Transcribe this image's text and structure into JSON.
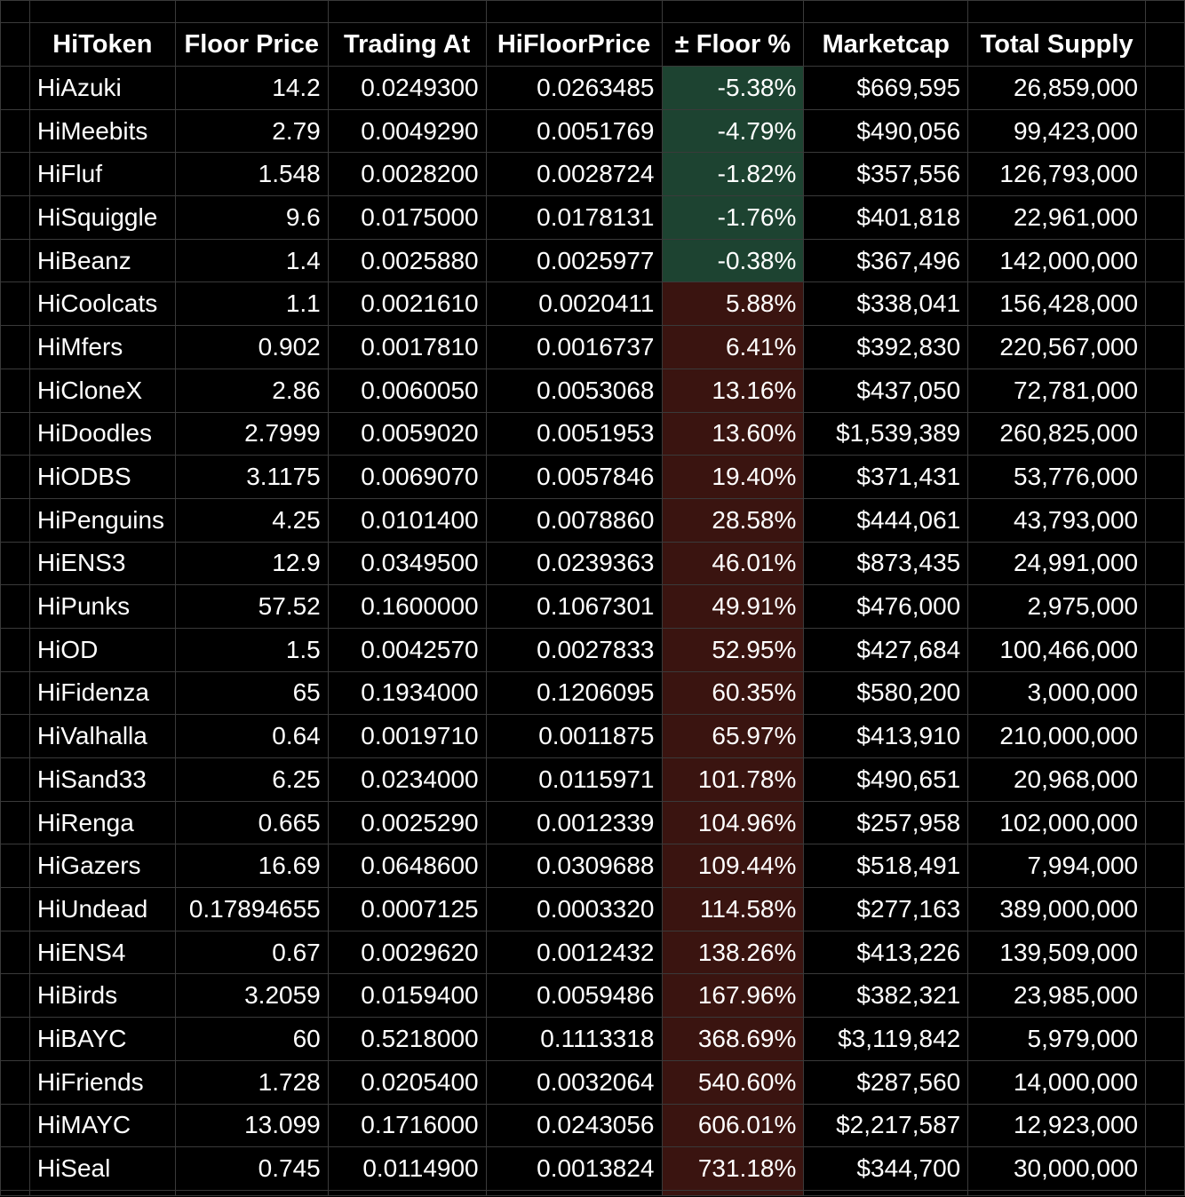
{
  "colors": {
    "background": "#000000",
    "gridline": "#3a3a3a",
    "text": "#ffffff",
    "below_floor_fill": "#1d4331",
    "above_floor_fill": "#3a1410"
  },
  "headers": [
    "HiToken",
    "Floor Price",
    "Trading At",
    "HiFloorPrice",
    "± Floor %",
    "Marketcap",
    "Total Supply"
  ],
  "rows": [
    [
      "HiAzuki",
      "14.2",
      "0.0249300",
      "0.0263485",
      "-5.38%",
      "$669,595",
      "26,859,000"
    ],
    [
      "HiMeebits",
      "2.79",
      "0.0049290",
      "0.0051769",
      "-4.79%",
      "$490,056",
      "99,423,000"
    ],
    [
      "HiFluf",
      "1.548",
      "0.0028200",
      "0.0028724",
      "-1.82%",
      "$357,556",
      "126,793,000"
    ],
    [
      "HiSquiggle",
      "9.6",
      "0.0175000",
      "0.0178131",
      "-1.76%",
      "$401,818",
      "22,961,000"
    ],
    [
      "HiBeanz",
      "1.4",
      "0.0025880",
      "0.0025977",
      "-0.38%",
      "$367,496",
      "142,000,000"
    ],
    [
      "HiCoolcats",
      "1.1",
      "0.0021610",
      "0.0020411",
      "5.88%",
      "$338,041",
      "156,428,000"
    ],
    [
      "HiMfers",
      "0.902",
      "0.0017810",
      "0.0016737",
      "6.41%",
      "$392,830",
      "220,567,000"
    ],
    [
      "HiCloneX",
      "2.86",
      "0.0060050",
      "0.0053068",
      "13.16%",
      "$437,050",
      "72,781,000"
    ],
    [
      "HiDoodles",
      "2.7999",
      "0.0059020",
      "0.0051953",
      "13.60%",
      "$1,539,389",
      "260,825,000"
    ],
    [
      "HiODBS",
      "3.1175",
      "0.0069070",
      "0.0057846",
      "19.40%",
      "$371,431",
      "53,776,000"
    ],
    [
      "HiPenguins",
      "4.25",
      "0.0101400",
      "0.0078860",
      "28.58%",
      "$444,061",
      "43,793,000"
    ],
    [
      "HiENS3",
      "12.9",
      "0.0349500",
      "0.0239363",
      "46.01%",
      "$873,435",
      "24,991,000"
    ],
    [
      "HiPunks",
      "57.52",
      "0.1600000",
      "0.1067301",
      "49.91%",
      "$476,000",
      "2,975,000"
    ],
    [
      "HiOD",
      "1.5",
      "0.0042570",
      "0.0027833",
      "52.95%",
      "$427,684",
      "100,466,000"
    ],
    [
      "HiFidenza",
      "65",
      "0.1934000",
      "0.1206095",
      "60.35%",
      "$580,200",
      "3,000,000"
    ],
    [
      "HiValhalla",
      "0.64",
      "0.0019710",
      "0.0011875",
      "65.97%",
      "$413,910",
      "210,000,000"
    ],
    [
      "HiSand33",
      "6.25",
      "0.0234000",
      "0.0115971",
      "101.78%",
      "$490,651",
      "20,968,000"
    ],
    [
      "HiRenga",
      "0.665",
      "0.0025290",
      "0.0012339",
      "104.96%",
      "$257,958",
      "102,000,000"
    ],
    [
      "HiGazers",
      "16.69",
      "0.0648600",
      "0.0309688",
      "109.44%",
      "$518,491",
      "7,994,000"
    ],
    [
      "HiUndead",
      "0.17894655",
      "0.0007125",
      "0.0003320",
      "114.58%",
      "$277,163",
      "389,000,000"
    ],
    [
      "HiENS4",
      "0.67",
      "0.0029620",
      "0.0012432",
      "138.26%",
      "$413,226",
      "139,509,000"
    ],
    [
      "HiBirds",
      "3.2059",
      "0.0159400",
      "0.0059486",
      "167.96%",
      "$382,321",
      "23,985,000"
    ],
    [
      "HiBAYC",
      "60",
      "0.5218000",
      "0.1113318",
      "368.69%",
      "$3,119,842",
      "5,979,000"
    ],
    [
      "HiFriends",
      "1.728",
      "0.0205400",
      "0.0032064",
      "540.60%",
      "$287,560",
      "14,000,000"
    ],
    [
      "HiMAYC",
      "13.099",
      "0.1716000",
      "0.0243056",
      "606.01%",
      "$2,217,587",
      "12,923,000"
    ],
    [
      "HiSeal",
      "0.745",
      "0.0114900",
      "0.0013824",
      "731.18%",
      "$344,700",
      "30,000,000"
    ]
  ]
}
